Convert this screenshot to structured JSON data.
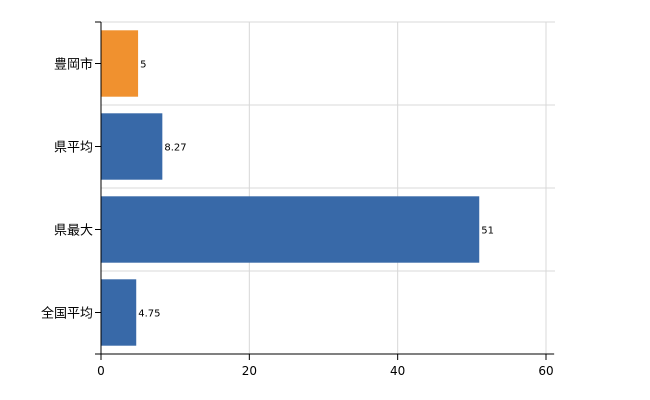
{
  "chart_data": {
    "type": "bar",
    "orientation": "horizontal",
    "categories": [
      "豊岡市",
      "県平均",
      "県最大",
      "全国平均"
    ],
    "values": [
      5,
      8.27,
      51,
      4.75
    ],
    "data_labels": [
      "5",
      "8.27",
      "51",
      "4.75"
    ],
    "highlight_index": 0,
    "colors": {
      "highlight": "#f0912f",
      "default": "#3869a8"
    },
    "xlim": [
      0,
      60
    ],
    "x_ticks": [
      0,
      20,
      40,
      60
    ],
    "x_tick_labels": [
      "0",
      "20",
      "40",
      "60"
    ],
    "grid": true,
    "title": "",
    "xlabel": "",
    "ylabel": ""
  }
}
